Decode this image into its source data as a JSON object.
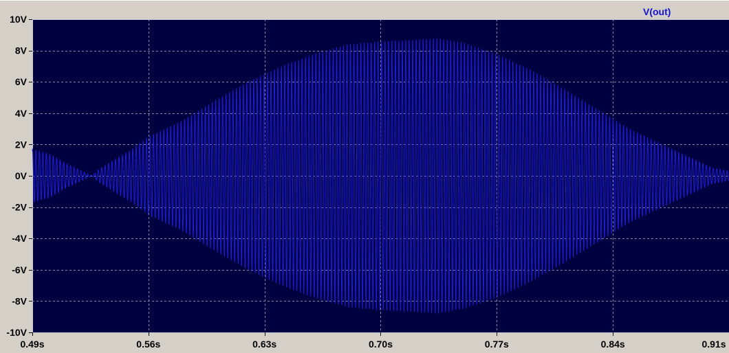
{
  "chart_data": {
    "type": "line",
    "title": "",
    "xlabel": "",
    "ylabel": "",
    "xlim": [
      0.49,
      0.91
    ],
    "ylim": [
      -10,
      10
    ],
    "x_ticks": [
      0.49,
      0.56,
      0.63,
      0.7,
      0.77,
      0.84,
      0.91
    ],
    "x_tick_labels": [
      "0.49s",
      "0.56s",
      "0.63s",
      "0.70s",
      "0.77s",
      "0.84s",
      "0.91s"
    ],
    "y_ticks": [
      10,
      8,
      6,
      4,
      2,
      0,
      -2,
      -4,
      -6,
      -8,
      -10
    ],
    "y_tick_labels": [
      "10V",
      "8V",
      "6V",
      "4V",
      "2V",
      "0V",
      "-2V",
      "-4V",
      "-6V",
      "-8V",
      "-10V"
    ],
    "grid": true,
    "legend_position": "top-right",
    "series": [
      {
        "name": "V(out)",
        "color": "#1e1ed8",
        "description": "oscillation with slowly varying envelope (beat pattern)",
        "carrier_cycles_per_second": 480,
        "envelope": {
          "x": [
            0.49,
            0.5,
            0.51,
            0.52,
            0.526,
            0.53,
            0.55,
            0.56,
            0.58,
            0.6,
            0.62,
            0.64,
            0.66,
            0.68,
            0.7,
            0.72,
            0.735,
            0.75,
            0.77,
            0.79,
            0.81,
            0.83,
            0.85,
            0.87,
            0.89,
            0.9,
            0.91
          ],
          "amplitude": [
            1.7,
            1.4,
            0.8,
            0.3,
            0.0,
            0.4,
            1.7,
            2.5,
            3.5,
            4.8,
            6.0,
            7.0,
            7.8,
            8.4,
            8.6,
            8.7,
            8.8,
            8.5,
            7.8,
            6.8,
            5.6,
            4.3,
            3.0,
            2.0,
            1.0,
            0.5,
            0.3
          ]
        }
      }
    ]
  },
  "colors": {
    "plot_background": "#000040",
    "grid": "#8a8aa8",
    "axis": "#c8c8d8",
    "trace": "#1e1ed8",
    "legend_text": "#1414d0",
    "tick_text": "#000000",
    "frame_background": "#d4d0c8"
  }
}
